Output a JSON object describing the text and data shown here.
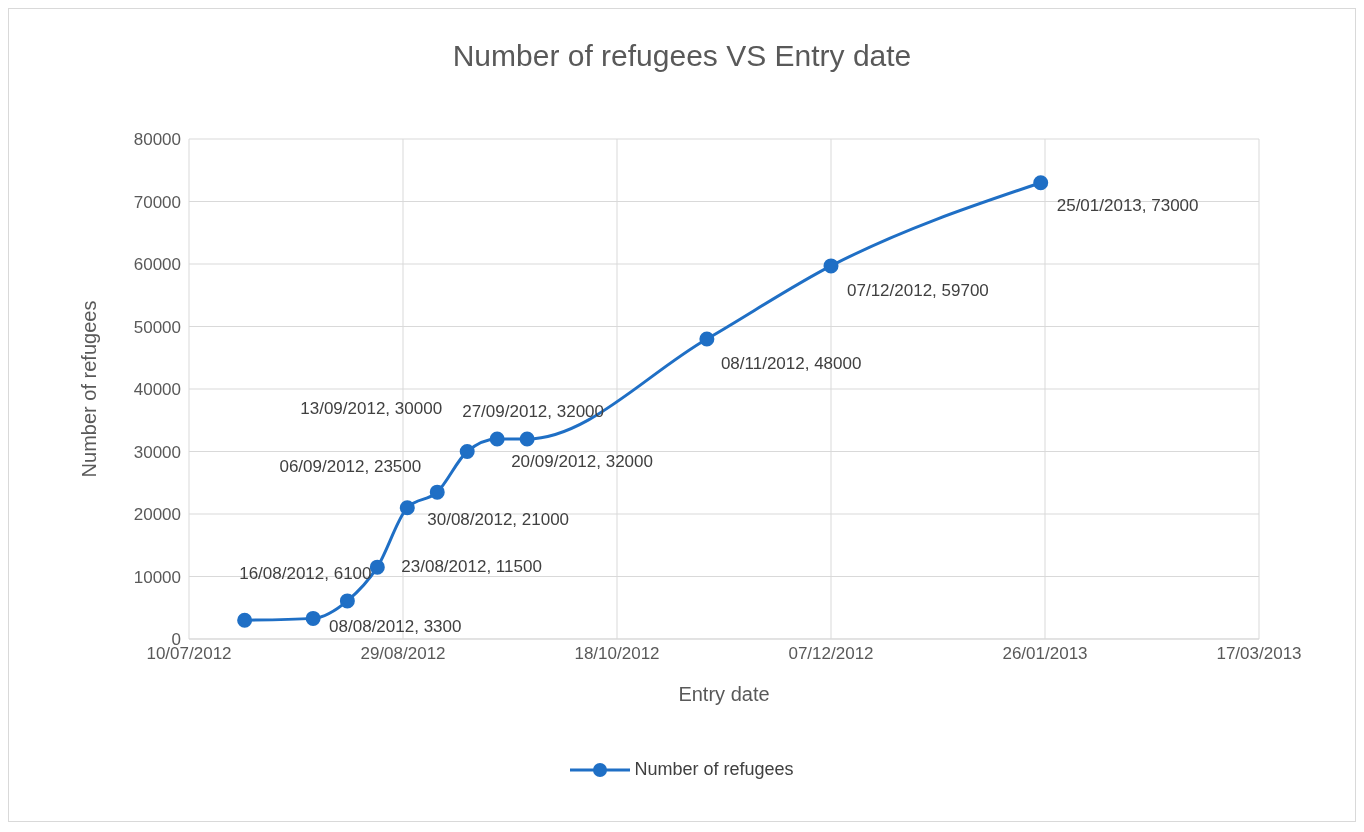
{
  "chart_data": {
    "type": "line",
    "title": "Number of refugees VS Entry date",
    "xlabel": "Entry date",
    "ylabel": "Number of refugees",
    "x": [
      "2012-07-23",
      "2012-08-08",
      "2012-08-16",
      "2012-08-23",
      "2012-08-30",
      "2012-09-06",
      "2012-09-13",
      "2012-09-20",
      "2012-09-27",
      "2012-11-08",
      "2012-12-07",
      "2013-01-25"
    ],
    "series": [
      {
        "name": "Number of refugees",
        "color": "#1f6fc5",
        "values": [
          3000,
          3300,
          6100,
          11500,
          21000,
          23500,
          30000,
          32000,
          32000,
          48000,
          59700,
          73000
        ],
        "value_labels": [
          null,
          "08/08/2012, 3300",
          "16/08/2012, 6100",
          "23/08/2012, 11500",
          "30/08/2012, 21000",
          "06/09/2012, 23500",
          "13/09/2012, 30000",
          "20/09/2012, 32000",
          "27/09/2012, 32000",
          "08/11/2012, 48000",
          "07/12/2012, 59700",
          "25/01/2013, 73000"
        ]
      }
    ],
    "xlim": [
      "2012-07-10",
      "2013-03-17"
    ],
    "xticks": [
      {
        "value": "2012-07-10",
        "label": "10/07/2012"
      },
      {
        "value": "2012-08-29",
        "label": "29/08/2012"
      },
      {
        "value": "2012-10-18",
        "label": "18/10/2012"
      },
      {
        "value": "2012-12-07",
        "label": "07/12/2012"
      },
      {
        "value": "2013-01-26",
        "label": "26/01/2013"
      },
      {
        "value": "2013-03-17",
        "label": "17/03/2013"
      }
    ],
    "ylim": [
      0,
      80000
    ],
    "yticks": [
      0,
      10000,
      20000,
      30000,
      40000,
      50000,
      60000,
      70000,
      80000
    ],
    "grid": true,
    "legend": "bottom",
    "marker": "circle",
    "line_style": "solid"
  }
}
